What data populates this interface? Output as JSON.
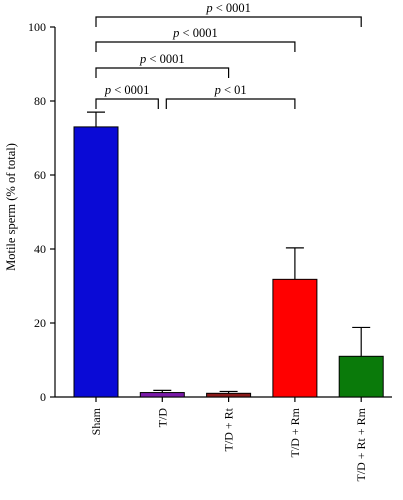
{
  "chart_data": {
    "type": "bar",
    "title": "",
    "xlabel": "",
    "ylabel": "Motile sperm (% of total)",
    "ylim": [
      0,
      100
    ],
    "yticks": [
      0,
      20,
      40,
      60,
      80,
      100
    ],
    "categories": [
      "Sham",
      "T/D",
      "T/D + Rt",
      "T/D + Rm",
      "T/D + Rt + Rm"
    ],
    "values": [
      73,
      1.2,
      1.0,
      31.8,
      11
    ],
    "errors": [
      4,
      0.6,
      0.5,
      8.5,
      7.8
    ],
    "colors": [
      "#0a0ad6",
      "#7a1aa8",
      "#8b1a1a",
      "#ff0000",
      "#0a7a0a"
    ],
    "comparisons": [
      {
        "from": 0,
        "to": 4,
        "label_p": "p",
        "label_rest": " < 0001"
      },
      {
        "from": 0,
        "to": 3,
        "label_p": "p",
        "label_rest": " < 0001"
      },
      {
        "from": 0,
        "to": 2,
        "label_p": "p",
        "label_rest": " < 0001"
      },
      {
        "from": 0,
        "to": 1,
        "label_p": "p",
        "label_rest": " < 0001"
      },
      {
        "from": 1,
        "to": 3,
        "label_p": "p",
        "label_rest": " < 01"
      }
    ]
  }
}
